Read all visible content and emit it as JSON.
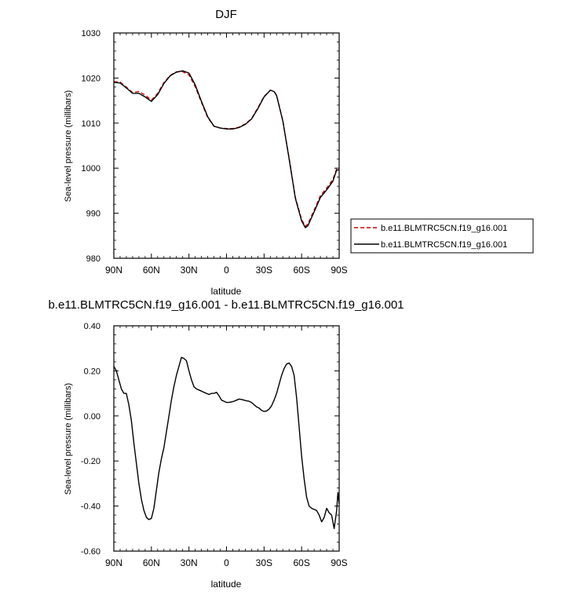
{
  "chart_data": [
    {
      "type": "line",
      "title": "DJF",
      "xlabel": "latitude",
      "ylabel": "Sea-level pressure (millibars)",
      "xlim": [
        90,
        -90
      ],
      "ylim": [
        980,
        1030
      ],
      "xticks": [
        90,
        60,
        30,
        0,
        -30,
        -60,
        -90
      ],
      "xtick_labels": [
        "90N",
        "60N",
        "30N",
        "0",
        "30S",
        "60S",
        "90S"
      ],
      "yticks": [
        980,
        990,
        1000,
        1010,
        1020,
        1030
      ],
      "ytick_labels": [
        "980",
        "990",
        "1000",
        "1010",
        "1020",
        "1030"
      ],
      "legend": {
        "placement": "right"
      },
      "series": [
        {
          "name": "b.e11.BLMTRC5CN.f19_g16.001",
          "color": "#cc0000",
          "dash": "dashed",
          "x": [
            90,
            85,
            80,
            75,
            70,
            65,
            60,
            55,
            50,
            45,
            40,
            35,
            30,
            25,
            20,
            15,
            10,
            5,
            0,
            -5,
            -10,
            -15,
            -20,
            -25,
            -30,
            -35,
            -38,
            -40,
            -45,
            -50,
            -55,
            -60,
            -63,
            -65,
            -70,
            -75,
            -80,
            -85,
            -88,
            -90
          ],
          "y": [
            1019.2,
            1019.1,
            1018.0,
            1016.8,
            1017.0,
            1016.2,
            1015.1,
            1016.6,
            1019.0,
            1020.6,
            1021.4,
            1021.4,
            1020.7,
            1018.1,
            1014.6,
            1011.2,
            1009.3,
            1008.9,
            1008.8,
            1008.8,
            1009.1,
            1009.8,
            1011.0,
            1013.4,
            1015.9,
            1017.3,
            1017.0,
            1016.2,
            1010.5,
            1002.3,
            993.5,
            988.6,
            987.1,
            987.6,
            990.7,
            993.9,
            995.6,
            997.5,
            999.8,
            999.9
          ]
        },
        {
          "name": "b.e11.BLMTRC5CN.f19_g16.001",
          "color": "#000000",
          "dash": "solid",
          "x": [
            90,
            85,
            80,
            75,
            70,
            65,
            60,
            55,
            50,
            45,
            40,
            35,
            30,
            25,
            20,
            15,
            10,
            5,
            0,
            -5,
            -10,
            -15,
            -20,
            -25,
            -30,
            -35,
            -38,
            -40,
            -45,
            -50,
            -55,
            -60,
            -63,
            -65,
            -70,
            -75,
            -80,
            -85,
            -88,
            -90
          ],
          "y": [
            1019.0,
            1018.9,
            1017.8,
            1016.6,
            1016.6,
            1015.8,
            1014.8,
            1016.3,
            1018.8,
            1020.5,
            1021.3,
            1021.6,
            1021.1,
            1018.5,
            1014.8,
            1011.4,
            1009.3,
            1008.9,
            1008.7,
            1008.7,
            1009.0,
            1009.7,
            1010.9,
            1013.2,
            1015.8,
            1017.3,
            1017.0,
            1016.1,
            1010.4,
            1002.1,
            993.3,
            988.3,
            986.8,
            987.2,
            990.3,
            993.5,
            995.2,
            997.1,
            999.6,
            999.6
          ]
        }
      ]
    },
    {
      "type": "line",
      "title": "b.e11.BLMTRC5CN.f19_g16.001 - b.e11.BLMTRC5CN.f19_g16.001",
      "xlabel": "latitude",
      "ylabel": "Sea-level pressure (millibars)",
      "xlim": [
        90,
        -90
      ],
      "ylim": [
        -0.6,
        0.4
      ],
      "xticks": [
        90,
        60,
        30,
        0,
        -30,
        -60,
        -90
      ],
      "xtick_labels": [
        "90N",
        "60N",
        "30N",
        "0",
        "30S",
        "60S",
        "90S"
      ],
      "yticks": [
        -0.6,
        -0.4,
        -0.2,
        0.0,
        0.2,
        0.4
      ],
      "ytick_labels": [
        "-0.60",
        "-0.40",
        "-0.20",
        "0.00",
        "0.20",
        "0.40"
      ],
      "series": [
        {
          "color": "#000000",
          "dash": "solid",
          "x": [
            90,
            88,
            86,
            84,
            82,
            80,
            78,
            76,
            74,
            72,
            70,
            68,
            66,
            64,
            62,
            60,
            58,
            56,
            54,
            52,
            50,
            48,
            46,
            44,
            42,
            40,
            38,
            36,
            34,
            32,
            30,
            28,
            26,
            24,
            22,
            20,
            18,
            16,
            14,
            12,
            10,
            8,
            6,
            4,
            2,
            0,
            -2,
            -4,
            -6,
            -8,
            -10,
            -12,
            -14,
            -16,
            -18,
            -20,
            -22,
            -24,
            -26,
            -28,
            -30,
            -32,
            -34,
            -36,
            -38,
            -40,
            -42,
            -44,
            -46,
            -48,
            -50,
            -52,
            -54,
            -56,
            -58,
            -60,
            -62,
            -64,
            -66,
            -68,
            -70,
            -72,
            -74,
            -76,
            -78,
            -80,
            -82,
            -84,
            -86,
            -88,
            -89,
            -90
          ],
          "y": [
            0.22,
            0.2,
            0.16,
            0.12,
            0.1,
            0.1,
            0.05,
            -0.02,
            -0.12,
            -0.21,
            -0.3,
            -0.37,
            -0.42,
            -0.45,
            -0.46,
            -0.455,
            -0.41,
            -0.33,
            -0.25,
            -0.19,
            -0.14,
            -0.07,
            0.0,
            0.07,
            0.13,
            0.18,
            0.22,
            0.26,
            0.255,
            0.245,
            0.2,
            0.16,
            0.13,
            0.12,
            0.115,
            0.11,
            0.105,
            0.1,
            0.095,
            0.1,
            0.1,
            0.105,
            0.09,
            0.07,
            0.065,
            0.06,
            0.06,
            0.062,
            0.065,
            0.07,
            0.075,
            0.073,
            0.07,
            0.067,
            0.065,
            0.06,
            0.05,
            0.04,
            0.035,
            0.025,
            0.02,
            0.022,
            0.03,
            0.045,
            0.07,
            0.1,
            0.14,
            0.18,
            0.21,
            0.23,
            0.235,
            0.22,
            0.18,
            0.08,
            -0.05,
            -0.18,
            -0.28,
            -0.36,
            -0.4,
            -0.41,
            -0.415,
            -0.42,
            -0.44,
            -0.47,
            -0.45,
            -0.41,
            -0.43,
            -0.44,
            -0.5,
            -0.42,
            -0.34,
            -0.39
          ]
        }
      ]
    }
  ]
}
